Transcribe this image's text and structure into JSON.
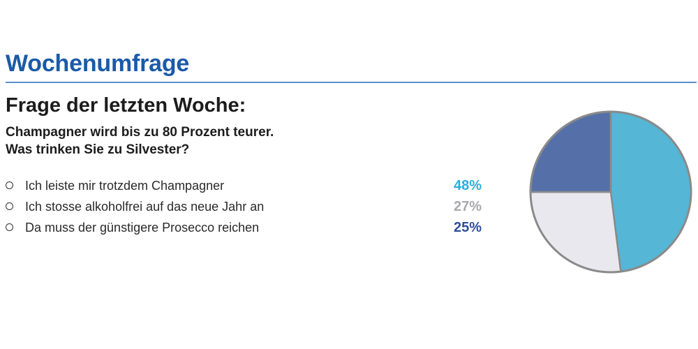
{
  "header": {
    "title": "Wochenumfrage"
  },
  "question": {
    "heading": "Frage der letzten Woche:",
    "line1": "Champagner wird bis zu 80 Prozent teurer.",
    "line2": "Was trinken Sie zu Silvester?"
  },
  "answers": [
    {
      "label": "Ich leiste mir trotzdem Champagner",
      "percent": "48%",
      "color": "#2aaee0"
    },
    {
      "label": "Ich stosse alkoholfrei auf das neue Jahr an",
      "percent": "27%",
      "color": "#a9a9ae"
    },
    {
      "label": "Da muss der günstigere Prosecco reichen",
      "percent": "25%",
      "color": "#2f4f9a"
    }
  ],
  "chart_data": {
    "type": "pie",
    "categories": [
      "Ich leiste mir trotzdem Champagner",
      "Ich stosse alkoholfrei auf das neue Jahr an",
      "Da muss der günstigere Prosecco reichen"
    ],
    "values": [
      48,
      27,
      25
    ],
    "colors": [
      "#55b6d6",
      "#e8e8ee",
      "#5570a8"
    ],
    "start_angle_deg": 0,
    "direction": "clockwise",
    "outline_color": "#8a8a8a"
  }
}
